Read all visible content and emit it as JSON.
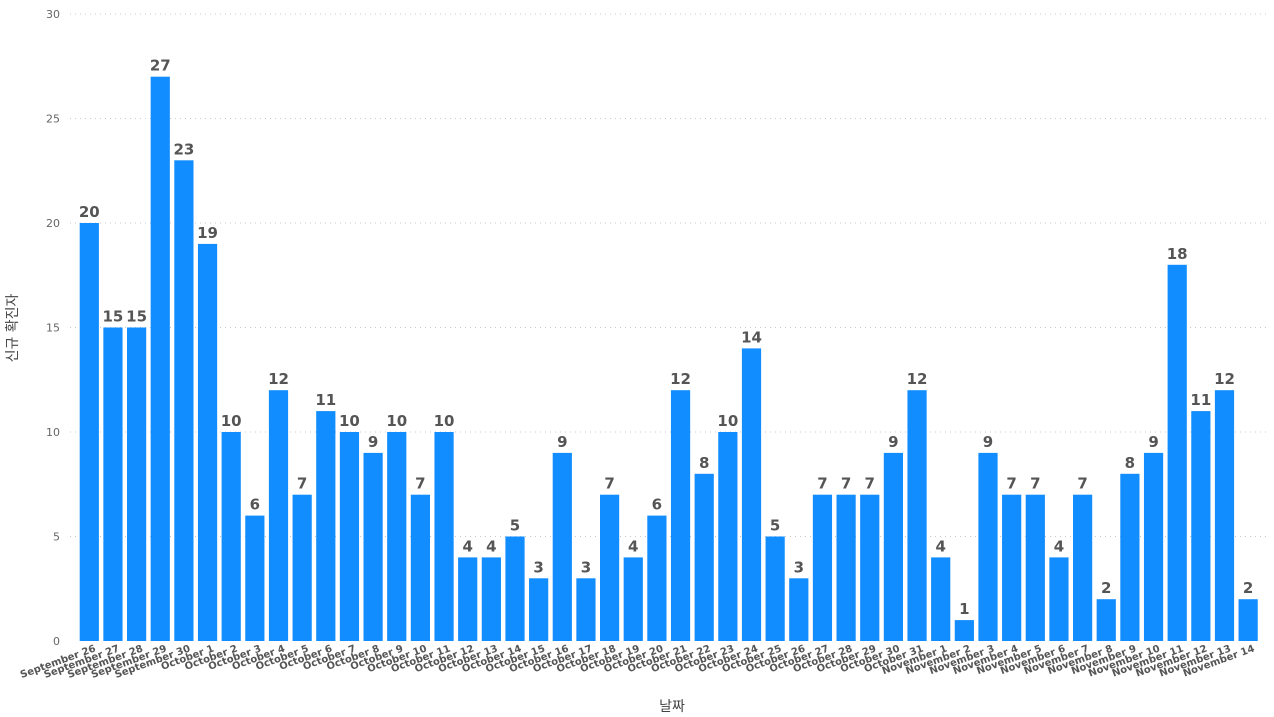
{
  "chart_data": {
    "type": "bar",
    "xlabel": "날짜",
    "ylabel": "신규 확진자",
    "ylim": [
      0,
      30
    ],
    "yticks": [
      0,
      5,
      10,
      15,
      20,
      25,
      30
    ],
    "grid": true,
    "colors": {
      "bar": "#118DFF"
    },
    "categories": [
      "September 26",
      "September 27",
      "September 28",
      "September 29",
      "September 30",
      "October 1",
      "October 2",
      "October 3",
      "October 4",
      "October 5",
      "October 6",
      "October 7",
      "October 8",
      "October 9",
      "October 10",
      "October 11",
      "October 12",
      "October 13",
      "October 14",
      "October 15",
      "October 16",
      "October 17",
      "October 18",
      "October 19",
      "October 20",
      "October 21",
      "October 22",
      "October 23",
      "October 24",
      "October 25",
      "October 26",
      "October 27",
      "October 28",
      "October 29",
      "October 30",
      "October 31",
      "November 1",
      "November 2",
      "November 3",
      "November 4",
      "November 5",
      "November 6",
      "November 7",
      "November 8",
      "November 9",
      "November 10",
      "November 11",
      "November 12",
      "November 13",
      "November 14"
    ],
    "values": [
      20,
      15,
      15,
      27,
      23,
      19,
      10,
      6,
      12,
      7,
      11,
      10,
      9,
      10,
      7,
      10,
      4,
      4,
      5,
      3,
      9,
      3,
      7,
      4,
      6,
      12,
      8,
      10,
      14,
      5,
      3,
      7,
      7,
      7,
      9,
      12,
      4,
      1,
      9,
      7,
      7,
      4,
      7,
      2,
      8,
      9,
      18,
      11,
      12,
      2
    ]
  }
}
